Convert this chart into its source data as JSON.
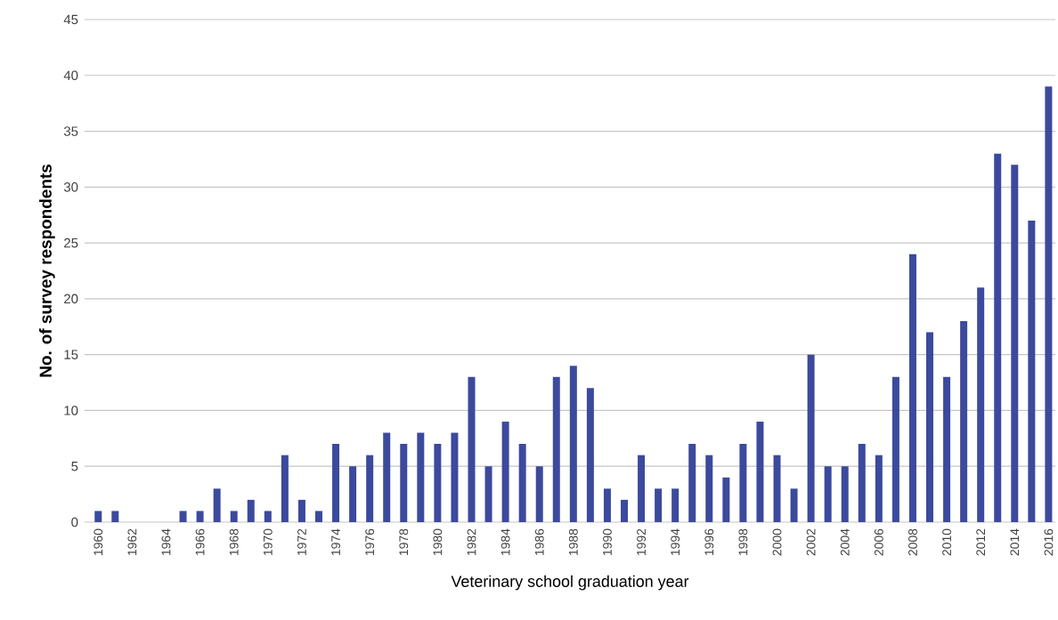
{
  "chart_data": {
    "type": "bar",
    "xlabel": "Veterinary school graduation year",
    "ylabel": "No. of survey respondents",
    "categories": [
      "1960",
      null,
      "1962",
      null,
      "1964",
      null,
      "1966",
      null,
      "1968",
      null,
      "1970",
      null,
      "1972",
      null,
      "1974",
      null,
      "1976",
      null,
      "1978",
      null,
      "1980",
      null,
      "1982",
      null,
      "1984",
      null,
      "1986",
      null,
      "1988",
      null,
      "1990",
      null,
      "1992",
      null,
      "1994",
      null,
      "1996",
      null,
      "1998",
      null,
      "2000",
      null,
      "2002",
      null,
      "2004",
      null,
      "2006",
      null,
      "2008",
      null,
      "2010",
      null,
      "2012",
      null,
      "2014",
      null,
      "2016"
    ],
    "values": [
      1,
      1,
      0,
      0,
      0,
      1,
      1,
      3,
      1,
      2,
      1,
      6,
      2,
      1,
      7,
      5,
      6,
      8,
      7,
      8,
      7,
      8,
      13,
      5,
      9,
      7,
      5,
      13,
      14,
      12,
      3,
      2,
      6,
      3,
      3,
      7,
      6,
      4,
      7,
      9,
      6,
      3,
      15,
      5,
      5,
      7,
      6,
      13,
      24,
      17,
      13,
      18,
      21,
      33,
      32,
      27,
      39
    ],
    "color": "#3b4a9c",
    "ylim": [
      0,
      45
    ],
    "yticks": [
      0,
      5,
      10,
      15,
      20,
      25,
      30,
      35,
      40,
      45
    ],
    "grid": "y"
  }
}
